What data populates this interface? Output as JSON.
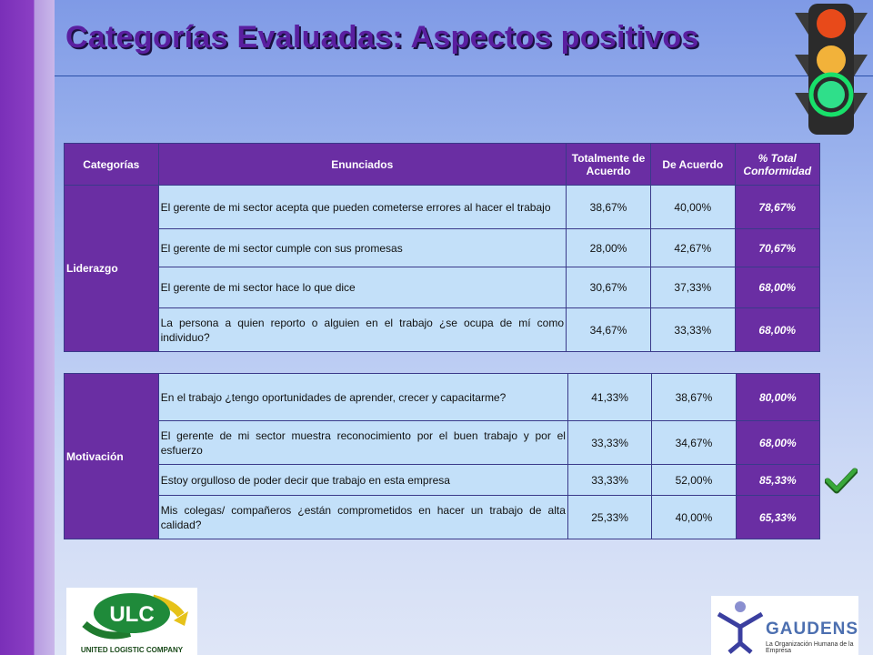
{
  "slide": {
    "title": "Categorías Evaluadas: Aspectos positivos"
  },
  "table": {
    "headers": {
      "category": "Categorías",
      "statements": "Enunciados",
      "totally_agree": "Totalmente de Acuerdo",
      "agree": "De Acuerdo",
      "total_conformity": "% Total Conformidad"
    },
    "groups": [
      {
        "category": "Liderazgo",
        "rows": [
          {
            "statement": "El gerente de mi sector acepta que pueden cometerse errores al hacer el trabajo",
            "totally_agree": "38,67%",
            "agree": "40,00%",
            "total": "78,67%"
          },
          {
            "statement": "El gerente de mi sector cumple con sus promesas",
            "totally_agree": "28,00%",
            "agree": "42,67%",
            "total": "70,67%"
          },
          {
            "statement": "El gerente de mi sector hace lo que dice",
            "totally_agree": "30,67%",
            "agree": "37,33%",
            "total": "68,00%"
          },
          {
            "statement": "La persona a quien reporto o alguien en el trabajo ¿se ocupa de mí como individuo?",
            "totally_agree": "34,67%",
            "agree": "33,33%",
            "total": "68,00%"
          }
        ]
      },
      {
        "category": "Motivación",
        "rows": [
          {
            "statement": "En el trabajo ¿tengo oportunidades de aprender, crecer y capacitarme?",
            "totally_agree": "41,33%",
            "agree": "38,67%",
            "total": "80,00%"
          },
          {
            "statement": "El gerente de mi sector muestra reconocimiento por el buen trabajo y por el esfuerzo",
            "totally_agree": "33,33%",
            "agree": "34,67%",
            "total": "68,00%"
          },
          {
            "statement": "Estoy orgulloso de poder decir que trabajo en esta empresa",
            "totally_agree": "33,33%",
            "agree": "52,00%",
            "total": "85,33%"
          },
          {
            "statement": "Mis colegas/ compañeros ¿están comprometidos en hacer un trabajo de alta calidad?",
            "totally_agree": "25,33%",
            "agree": "40,00%",
            "total": "65,33%"
          }
        ]
      }
    ]
  },
  "logos": {
    "ulc_mark": "ULC",
    "ulc_name": "UNITED LOGISTIC COMPANY",
    "gaudens_name": "GAUDENS",
    "gaudens_tagline": "La Organización Humana de la Empresa"
  },
  "icons": {
    "traffic_light": "traffic-light-icon",
    "check": "check-icon"
  },
  "colors": {
    "header_purple": "#6a2ea3",
    "cell_blue": "#c3e0f9",
    "title_purple": "#5a1fa0",
    "check_green": "#2e8b2e"
  }
}
